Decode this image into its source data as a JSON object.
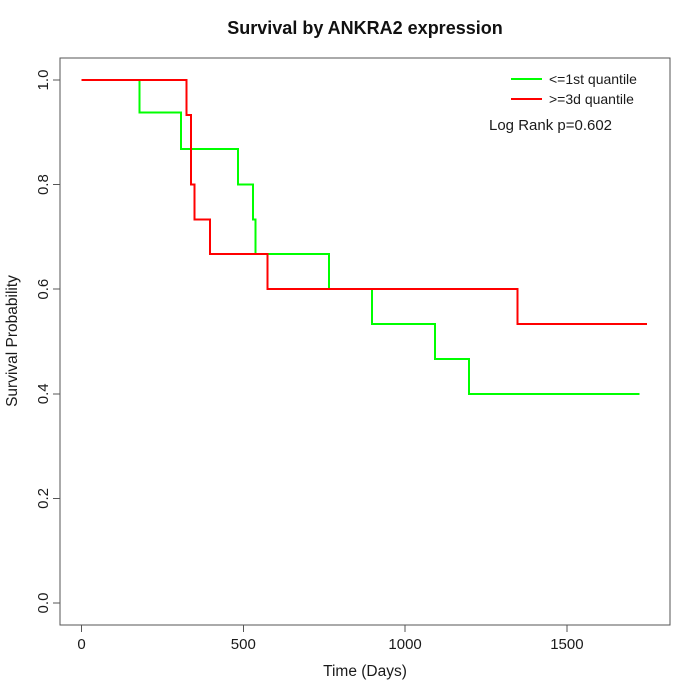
{
  "title": "Survival by ANKRA2 expression",
  "axes": {
    "x_label": "Time (Days)",
    "y_label": "Survival Probability",
    "x_ticks": [
      {
        "value": 0,
        "label": "0"
      },
      {
        "value": 500,
        "label": "500"
      },
      {
        "value": 1000,
        "label": "1000"
      },
      {
        "value": 1500,
        "label": "1500"
      }
    ],
    "y_ticks": [
      {
        "value": 0.0,
        "label": "0.0"
      },
      {
        "value": 0.2,
        "label": "0.2"
      },
      {
        "value": 0.4,
        "label": "0.4"
      },
      {
        "value": 0.6,
        "label": "0.6"
      },
      {
        "value": 0.8,
        "label": "0.8"
      },
      {
        "value": 1.0,
        "label": "1.0"
      }
    ]
  },
  "legend": {
    "items": [
      {
        "label": "<=1st quantile",
        "color": "#00ff00"
      },
      {
        "label": ">=3d quantile",
        "color": "#ff0000"
      }
    ],
    "note": "Log Rank p=0.602"
  },
  "chart_data": {
    "type": "line",
    "variant": "kaplan-meier-step",
    "title": "Survival by ANKRA2 expression",
    "xlabel": "Time (Days)",
    "ylabel": "Survival Probability",
    "xlim": [
      -70,
      1820
    ],
    "ylim": [
      -0.04,
      1.04
    ],
    "x_tick_values": [
      0,
      500,
      1000,
      1500
    ],
    "y_tick_values": [
      0.0,
      0.2,
      0.4,
      0.6,
      0.8,
      1.0
    ],
    "grid": false,
    "legend_position": "top-right-inside",
    "annotation": "Log Rank p=0.602",
    "series": [
      {
        "name": "<=1st quantile",
        "color": "#00ff00",
        "steps": [
          [
            0,
            1.0
          ],
          [
            180,
            0.9375
          ],
          [
            307,
            0.868
          ],
          [
            483,
            0.8
          ],
          [
            530,
            0.733
          ],
          [
            537,
            0.667
          ],
          [
            765,
            0.6
          ],
          [
            898,
            0.533
          ],
          [
            1092,
            0.467
          ],
          [
            1197,
            0.4
          ]
        ],
        "end_time": 1724
      },
      {
        "name": ">=3d quantile",
        "color": "#ff0000",
        "steps": [
          [
            0,
            1.0
          ],
          [
            325,
            0.933
          ],
          [
            338,
            0.8
          ],
          [
            349,
            0.733
          ],
          [
            397,
            0.667
          ],
          [
            575,
            0.6
          ],
          [
            1347,
            0.533
          ]
        ],
        "end_time": 1748
      }
    ]
  }
}
